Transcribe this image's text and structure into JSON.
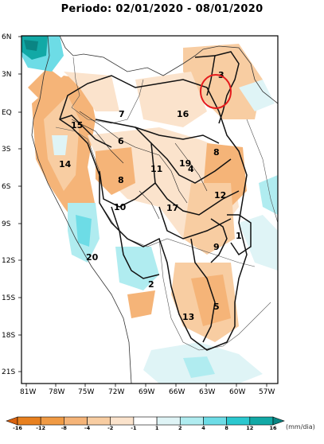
{
  "title": "Periodo: 02/01/2020 - 08/01/2020",
  "lat_labels": [
    "6N",
    "3N",
    "EQ",
    "3S",
    "6S",
    "9S",
    "12S",
    "15S",
    "18S",
    "21S"
  ],
  "lon_labels": [
    "81W",
    "78W",
    "75W",
    "72W",
    "69W",
    "66W",
    "63W",
    "60W",
    "57W"
  ],
  "regions": [
    "1",
    "2",
    "3",
    "4",
    "5",
    "6",
    "7",
    "8",
    "8",
    "9",
    "10",
    "11",
    "12",
    "13",
    "14",
    "15",
    "16",
    "17",
    "19",
    "20"
  ],
  "colorbar": {
    "labels": [
      "-16",
      "-12",
      "-8",
      "-4",
      "-2",
      "-1",
      "1",
      "2",
      "4",
      "8",
      "12",
      "16"
    ],
    "unit": "(mm/dia)",
    "colors": [
      "#d9620f",
      "#e8801f",
      "#f09a44",
      "#f5b478",
      "#f8cda2",
      "#fbe3cc",
      "#ffffff",
      "#dff4f6",
      "#b0ecf0",
      "#6ddce6",
      "#2bc8cf",
      "#12a9a6",
      "#0a8583"
    ]
  },
  "colors": {
    "dry": "#f5b478",
    "light_dry": "#fbe3cc",
    "wet": "#b0ecf0",
    "strong_wet": "#12a9a6",
    "highlight_circle": "#e41a1c"
  }
}
